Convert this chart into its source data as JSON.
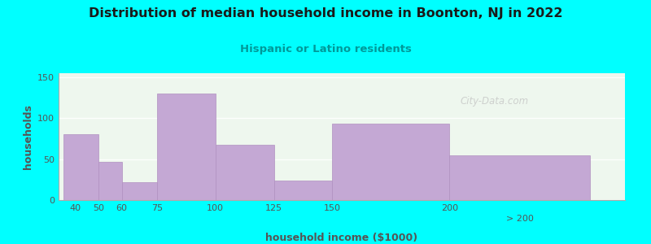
{
  "title": "Distribution of median household income in Boonton, NJ in 2022",
  "subtitle": "Hispanic or Latino residents",
  "xlabel": "household income ($1000)",
  "ylabel": "households",
  "background_color": "#00FFFF",
  "plot_bg_color": "#eef7ee",
  "bar_color": "#c4a8d4",
  "bar_edge_color": "#b090c0",
  "title_color": "#1a1a1a",
  "subtitle_color": "#009999",
  "axis_label_color": "#555555",
  "tick_label_color": "#555555",
  "bar_edges": [
    35,
    50,
    60,
    75,
    100,
    125,
    150,
    200,
    260
  ],
  "bar_heights": [
    80,
    47,
    22,
    130,
    68,
    24,
    93,
    55
  ],
  "ylim": [
    0,
    155
  ],
  "yticks": [
    0,
    50,
    100,
    150
  ],
  "xtick_positions": [
    40,
    50,
    60,
    75,
    100,
    125,
    150,
    200
  ],
  "xtick_labels": [
    "40",
    "50",
    "60",
    "75",
    "100",
    "125",
    "150",
    "200"
  ],
  "last_bar_mid": 230,
  "last_bar_label": "> 200",
  "xlim": [
    33,
    275
  ],
  "watermark": "City-Data.com",
  "grid_color": "#ffffff",
  "spine_color": "#aaaaaa"
}
